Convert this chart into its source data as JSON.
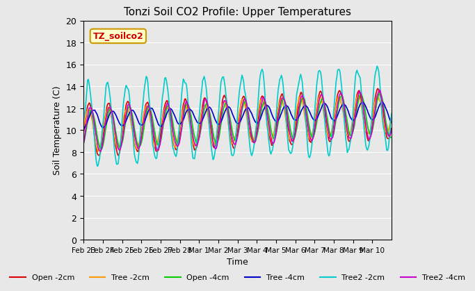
{
  "title": "Tonzi Soil CO2 Profile: Upper Temperatures",
  "xlabel": "Time",
  "ylabel": "Soil Temperature (C)",
  "ylim": [
    0,
    20
  ],
  "yticks": [
    0,
    2,
    4,
    6,
    8,
    10,
    12,
    14,
    16,
    18,
    20
  ],
  "annotation_text": "TZ_soilco2",
  "annotation_color": "#cc0000",
  "annotation_bg": "#ffffcc",
  "annotation_border": "#cc9900",
  "bg_color": "#e8e8e8",
  "series": [
    {
      "label": "Open -2cm",
      "color": "#dd0000"
    },
    {
      "label": "Tree -2cm",
      "color": "#ff9900"
    },
    {
      "label": "Open -4cm",
      "color": "#00cc00"
    },
    {
      "label": "Tree -4cm",
      "color": "#0000cc"
    },
    {
      "label": "Tree2 -2cm",
      "color": "#00cccc"
    },
    {
      "label": "Tree2 -4cm",
      "color": "#cc00cc"
    }
  ],
  "n_points": 384,
  "n_days": 16,
  "xtick_positions": [
    0,
    1,
    2,
    3,
    4,
    5,
    6,
    7,
    8,
    9,
    10,
    11,
    12,
    13,
    14,
    15
  ],
  "xtick_labels": [
    "Feb 23",
    "Feb 24",
    "Feb 25",
    "Feb 26",
    "Feb 27",
    "Feb 28",
    "Mar 1",
    "Mar 2",
    "Mar 3",
    "Mar 4",
    "Mar 5",
    "Mar 6",
    "Mar 7",
    "Mar 8",
    "Mar 9",
    "Mar 10"
  ],
  "linewidth": 1.2
}
